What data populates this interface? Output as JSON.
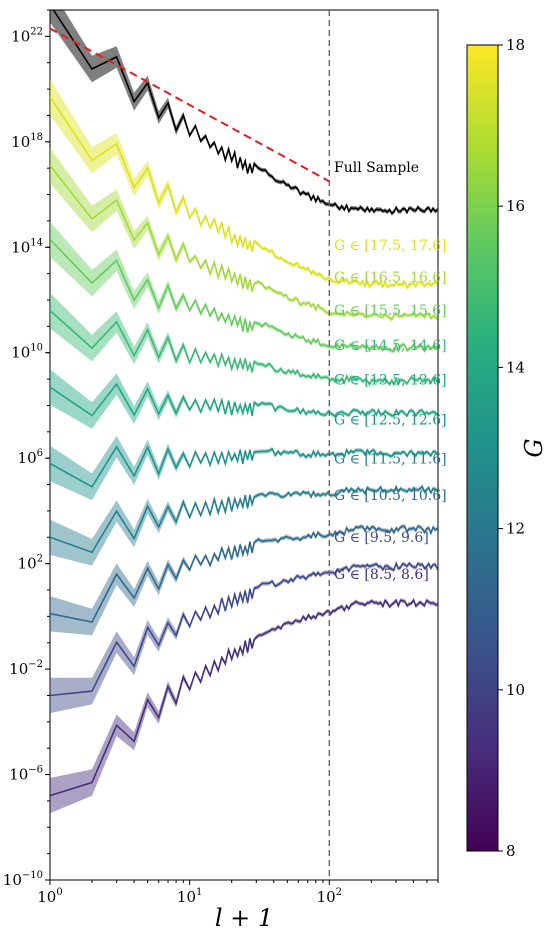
{
  "chart_data": {
    "type": "line",
    "xlabel": "l + 1",
    "x_scale": "log",
    "y_scale": "log",
    "xlim": [
      1,
      600
    ],
    "ylim_exp": [
      -10,
      23
    ],
    "x_ticks": [
      {
        "v": 1,
        "base": "10",
        "exp": "0"
      },
      {
        "v": 10,
        "base": "10",
        "exp": "1"
      },
      {
        "v": 100,
        "base": "10",
        "exp": "2"
      }
    ],
    "y_ticks": [
      {
        "e": -10,
        "base": "10",
        "exp": "−10"
      },
      {
        "e": -6,
        "base": "10",
        "exp": "−6"
      },
      {
        "e": -2,
        "base": "10",
        "exp": "−2"
      },
      {
        "e": 2,
        "base": "10",
        "exp": "2"
      },
      {
        "e": 6,
        "base": "10",
        "exp": "6"
      },
      {
        "e": 10,
        "base": "10",
        "exp": "10"
      },
      {
        "e": 14,
        "base": "10",
        "exp": "14"
      },
      {
        "e": 18,
        "base": "10",
        "exp": "18"
      },
      {
        "e": 22,
        "base": "10",
        "exp": "22"
      }
    ],
    "vline_x": 100,
    "reference_line": {
      "style": "red-dashed",
      "x": [
        1,
        100
      ],
      "log10_y": [
        22.3,
        16.5
      ]
    },
    "colorbar": {
      "label": "G",
      "min": 8,
      "max": 18,
      "ticks": [
        "8",
        "10",
        "12",
        "14",
        "16",
        "18"
      ]
    },
    "series": [
      {
        "name": "Full Sample",
        "G": null,
        "color": "#000000",
        "log10_start": 23.2,
        "log10_plateau": 15.4
      },
      {
        "name": "G ∈ [17.5, 17.6]",
        "G": 17.55,
        "color": "#dde318",
        "log10_start": 19.7,
        "log10_plateau": 12.6
      },
      {
        "name": "G ∈ [16.5, 16.6]",
        "G": 16.55,
        "color": "#a2da37",
        "log10_start": 17.1,
        "log10_plateau": 11.4
      },
      {
        "name": "G ∈ [15.5, 15.6]",
        "G": 15.55,
        "color": "#66cb5d",
        "log10_start": 14.3,
        "log10_plateau": 10.2
      },
      {
        "name": "G ∈ [14.5, 14.6]",
        "G": 14.55,
        "color": "#3bba76",
        "log10_start": 11.6,
        "log10_plateau": 8.95
      },
      {
        "name": "G ∈ [13.5, 13.6]",
        "G": 13.55,
        "color": "#22a784",
        "log10_start": 8.7,
        "log10_plateau": 7.7
      },
      {
        "name": "G ∈ [12.5, 12.6]",
        "G": 12.55,
        "color": "#1f948c",
        "log10_start": 5.8,
        "log10_plateau": 6.2
      },
      {
        "name": "G ∈ [11.5, 11.6]",
        "G": 11.55,
        "color": "#277f8e",
        "log10_start": 3.0,
        "log10_plateau": 4.8
      },
      {
        "name": "G ∈ [10.5, 10.6]",
        "G": 10.55,
        "color": "#31688e",
        "log10_start": 0.1,
        "log10_plateau": 3.3
      },
      {
        "name": "G ∈ [9.5, 9.6]",
        "G": 9.55,
        "color": "#3e4a89",
        "log10_start": -3.0,
        "log10_plateau": 1.9
      },
      {
        "name": "G ∈ [8.5, 8.6]",
        "G": 8.55,
        "color": "#462f7c",
        "log10_start": -6.8,
        "log10_plateau": 0.5
      }
    ]
  }
}
